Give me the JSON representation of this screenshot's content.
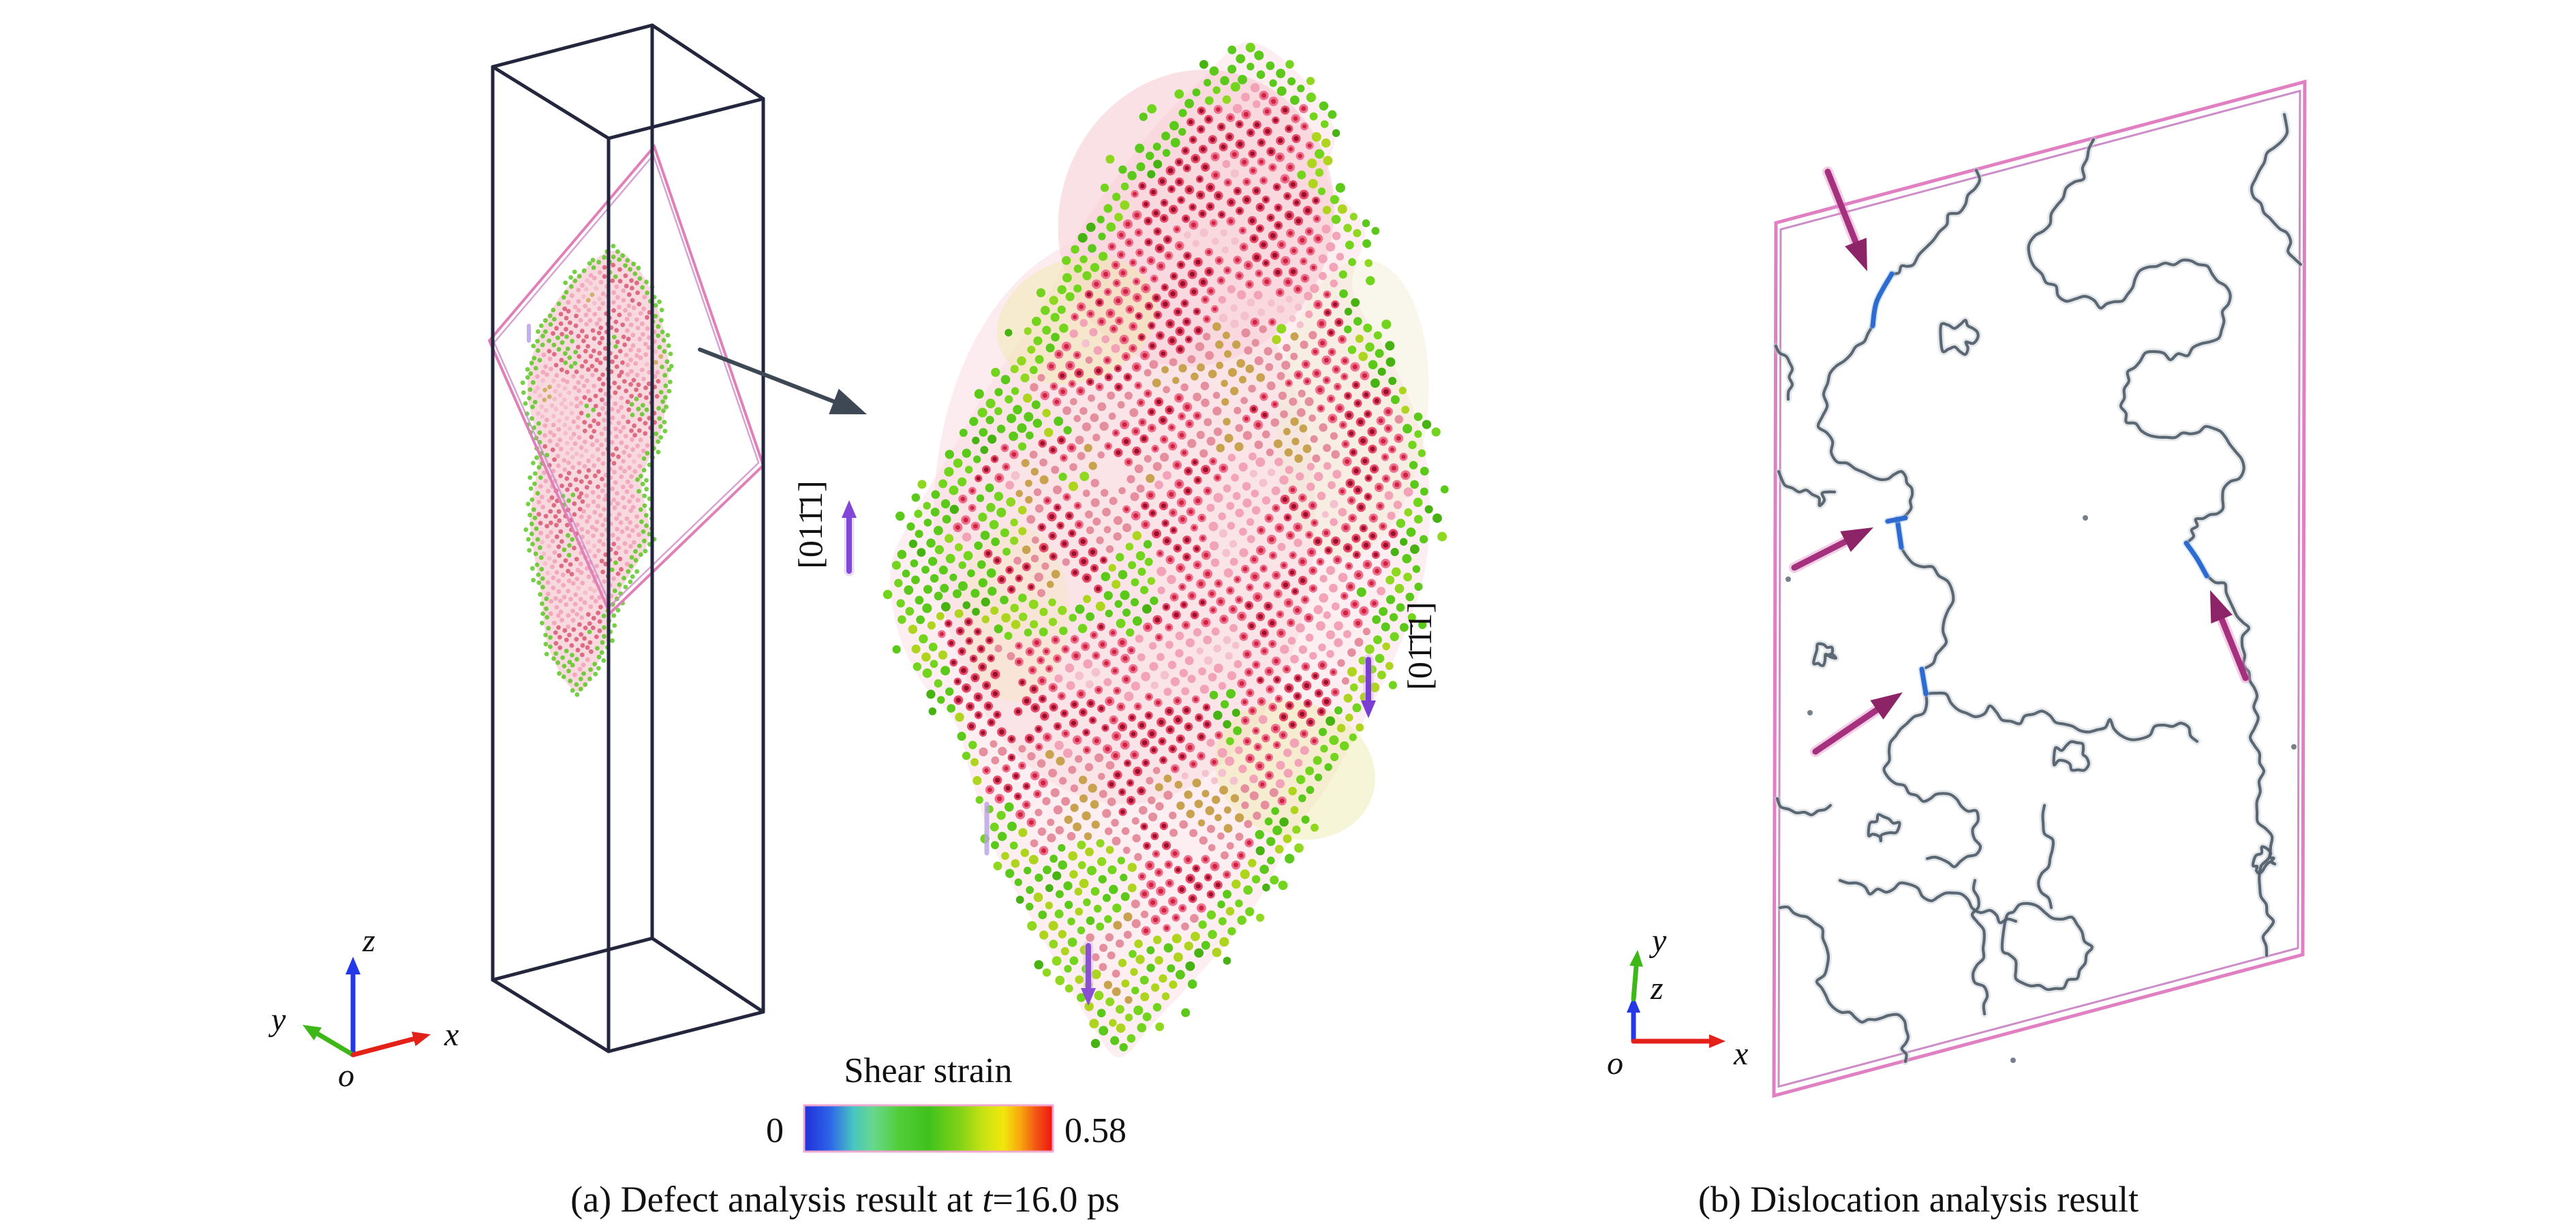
{
  "panel_a": {
    "caption": {
      "prefix": "(a) Defect analysis result at ",
      "variable": "t",
      "suffix": "=16.0 ps"
    },
    "direction_labels": {
      "left": "[011̄1]",
      "right": "[01̄1̄1]"
    },
    "colorbar": {
      "title": "Shear strain",
      "min_label": "0",
      "max_label": "0.58"
    },
    "axis_triad": {
      "x": "x",
      "y": "y",
      "z": "z",
      "origin": "o"
    }
  },
  "panel_b": {
    "caption": "(b) Dislocation analysis result",
    "axis_triad": {
      "x": "x",
      "y": "y",
      "z": "z",
      "origin": "o"
    }
  },
  "colors": {
    "axis_x": "#e32119",
    "axis_y": "#3eb818",
    "axis_z": "#2438e8",
    "origin_label": "#111111",
    "box_wireframe": "#23263c",
    "slip_plane_pink": "#e080b8",
    "pointer_arrow_gray": "#3d4854",
    "strain_marker_purple": "#8148d8",
    "atom_red_deep": "#9a0f2c",
    "atom_red": "#cf2440",
    "atom_rose": "#ef6f8e",
    "atom_pink": "#f2a3b8",
    "atom_khaki": "#c8a24e",
    "atom_green": "#52c416",
    "atom_yellow_green": "#aed41e",
    "cluster_background": "#fdeef1",
    "frame_pink": "#e080c2",
    "frame_pink_inner": "#cc8cc8",
    "dislocation_gray": "#53606d",
    "dislocation_shadow": "#c3cad0",
    "dislocation_blue": "#2e6bd0",
    "dislocation_arrow_magenta": "#a5307e",
    "dislocation_arrow_head": "#8e2468",
    "colorbar_stops": [
      "#2130d6",
      "#2b62ea",
      "#49c6c0",
      "#67d88a",
      "#52cd3a",
      "#3fc21b",
      "#7ed118",
      "#c6e312",
      "#f2e70d",
      "#f8a70c",
      "#f25814",
      "#ee1410"
    ],
    "colorbar_offsets": [
      0,
      0.1,
      0.2,
      0.28,
      0.38,
      0.5,
      0.62,
      0.72,
      0.8,
      0.87,
      0.93,
      1
    ]
  }
}
